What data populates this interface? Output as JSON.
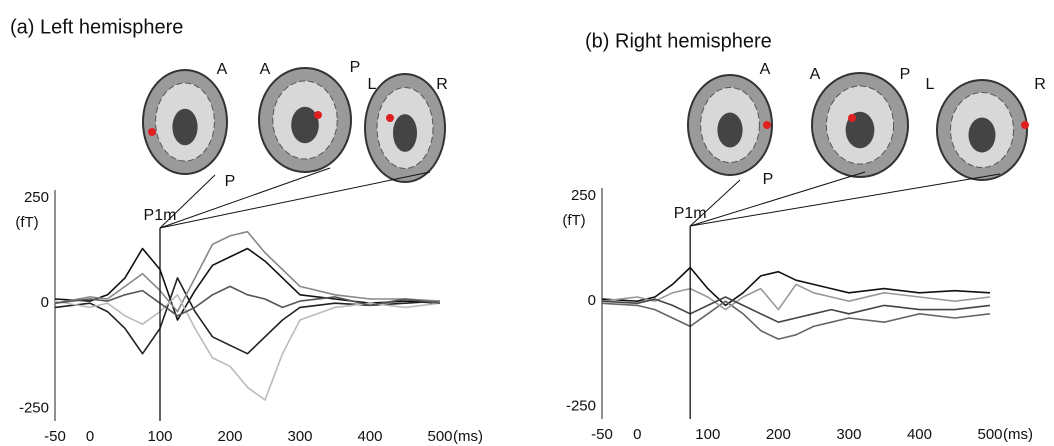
{
  "chart_data": [
    {
      "type": "line",
      "title": "(a) Left hemisphere",
      "x_label": "(ms)",
      "y_label": "(fT)",
      "x": [
        -50,
        0,
        25,
        50,
        75,
        100,
        125,
        150,
        175,
        200,
        225,
        250,
        275,
        300,
        350,
        400,
        450,
        500
      ],
      "series": [
        {
          "color": "#111111",
          "values": [
            10,
            5,
            20,
            60,
            130,
            80,
            -40,
            30,
            90,
            110,
            130,
            100,
            60,
            20,
            10,
            0,
            5,
            0
          ]
        },
        {
          "color": "#222222",
          "values": [
            -10,
            0,
            -20,
            -60,
            -120,
            -60,
            60,
            -20,
            -80,
            -100,
            -120,
            -80,
            -40,
            -10,
            0,
            -5,
            0,
            5
          ]
        },
        {
          "color": "#888888",
          "values": [
            0,
            15,
            10,
            40,
            70,
            30,
            -20,
            60,
            140,
            160,
            170,
            120,
            80,
            40,
            20,
            10,
            10,
            5
          ]
        },
        {
          "color": "#bbbbbb",
          "values": [
            5,
            -10,
            0,
            -30,
            -50,
            -20,
            20,
            -60,
            -130,
            -150,
            -200,
            -230,
            -120,
            -40,
            -10,
            0,
            -10,
            0
          ]
        },
        {
          "color": "#555555",
          "values": [
            0,
            10,
            5,
            20,
            30,
            0,
            -30,
            -10,
            20,
            40,
            20,
            10,
            -10,
            5,
            15,
            -5,
            10,
            0
          ]
        }
      ],
      "xlim": [
        -50,
        500
      ],
      "xticks": [
        -50,
        0,
        100,
        200,
        300,
        400,
        500
      ],
      "ylim": [
        -280,
        250
      ],
      "yticks": [
        -250,
        0,
        250
      ],
      "annotations": [
        {
          "text": "P1m",
          "x": 100
        }
      ],
      "brain_views": [
        {
          "labels": [
            "A",
            "P"
          ]
        },
        {
          "labels": [
            "A",
            "P"
          ]
        },
        {
          "labels": [
            "L",
            "R"
          ]
        }
      ]
    },
    {
      "type": "line",
      "title": "(b) Right hemisphere",
      "x_label": "(ms)",
      "y_label": "(fT)",
      "x": [
        -50,
        0,
        25,
        50,
        75,
        100,
        125,
        150,
        175,
        200,
        225,
        250,
        275,
        300,
        350,
        400,
        450,
        500
      ],
      "series": [
        {
          "color": "#111111",
          "values": [
            5,
            0,
            10,
            40,
            80,
            30,
            -10,
            20,
            60,
            70,
            50,
            40,
            30,
            20,
            30,
            20,
            25,
            20
          ]
        },
        {
          "color": "#666666",
          "values": [
            -5,
            -10,
            -20,
            -40,
            -60,
            -30,
            0,
            -30,
            -70,
            -90,
            -80,
            -60,
            -50,
            -40,
            -50,
            -30,
            -40,
            -30
          ]
        },
        {
          "color": "#999999",
          "values": [
            0,
            10,
            0,
            20,
            30,
            10,
            -20,
            10,
            30,
            -20,
            40,
            20,
            10,
            0,
            20,
            10,
            0,
            10
          ]
        },
        {
          "color": "#444444",
          "values": [
            0,
            -5,
            5,
            -10,
            -30,
            -10,
            10,
            -10,
            -30,
            -50,
            -40,
            -30,
            -20,
            -30,
            -10,
            -20,
            -20,
            -10
          ]
        }
      ],
      "xlim": [
        -50,
        500
      ],
      "xticks": [
        -50,
        0,
        100,
        200,
        300,
        400,
        500
      ],
      "ylim": [
        -280,
        250
      ],
      "yticks": [
        -250,
        0,
        250
      ],
      "annotations": [
        {
          "text": "P1m",
          "x": 75
        }
      ],
      "brain_views": [
        {
          "labels": [
            "A",
            "P"
          ]
        },
        {
          "labels": [
            "A",
            "P"
          ]
        },
        {
          "labels": [
            "L",
            "R"
          ]
        }
      ]
    }
  ]
}
